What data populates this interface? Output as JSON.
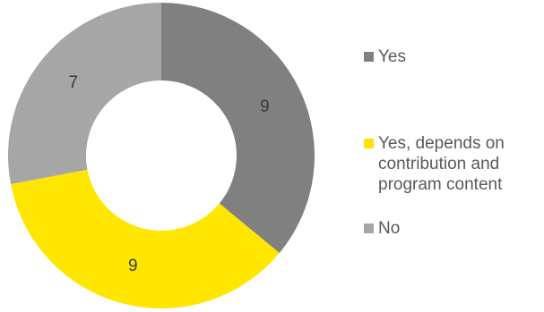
{
  "chart_data": {
    "type": "pie",
    "subtype": "doughnut",
    "categories": [
      "Yes",
      "Yes, depends on\ncontribution and\nprogram content",
      "No"
    ],
    "values": [
      9,
      9,
      7
    ],
    "colors": [
      "#808080",
      "#ffe600",
      "#a6a6a6"
    ],
    "data_labels": [
      "9",
      "9",
      "7"
    ],
    "legend_position": "right"
  },
  "legend": {
    "items": [
      {
        "label": "Yes",
        "color": "#808080"
      },
      {
        "label": "Yes, depends on\ncontribution and\nprogram content",
        "color": "#ffe600"
      },
      {
        "label": "No",
        "color": "#a6a6a6"
      }
    ]
  }
}
